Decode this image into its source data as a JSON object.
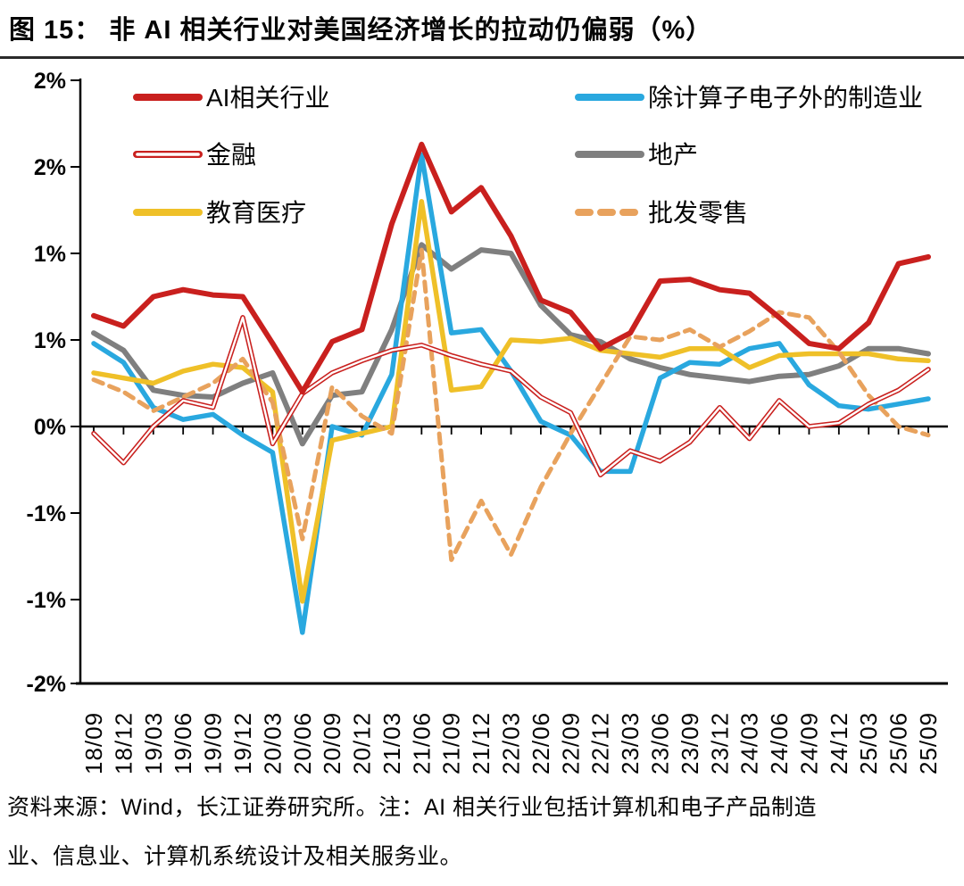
{
  "title": "图 15： 非 AI 相关行业对美国经济增长的拉动仍偏弱（%）",
  "footer": {
    "line1": "资料来源：Wind，长江证券研究所。注：AI 相关行业包括计算机和电子产品制造",
    "line2": "业、信息业、计算机系统设计及相关服务业。"
  },
  "colors": {
    "red": "#C9201E",
    "blue": "#29A8DF",
    "yellow": "#EFC028",
    "gray": "#7F7F7F",
    "orange": "#E8A25D",
    "axis": "#000000",
    "text": "#050505"
  },
  "chart_data": {
    "type": "line",
    "title": "非 AI 相关行业对美国经济增长的拉动仍偏弱（%）",
    "grid": false,
    "legend_position": "top-inside-two-columns",
    "x_labels": [
      "18/09",
      "18/12",
      "19/03",
      "19/06",
      "19/09",
      "19/12",
      "20/03",
      "20/06",
      "20/09",
      "20/12",
      "21/03",
      "21/06",
      "21/09",
      "21/12",
      "22/03",
      "22/06",
      "22/09",
      "22/12",
      "23/03",
      "23/06",
      "23/09",
      "23/12",
      "24/03",
      "24/06",
      "24/09",
      "24/12",
      "25/03",
      "25/06",
      "25/09"
    ],
    "y_axis": {
      "tick_labels": [
        "2%",
        "2%",
        "1%",
        "1%",
        "0%",
        "-1%",
        "-1%",
        "-2%"
      ],
      "tick_values": [
        2.0,
        1.5,
        1.0,
        0.5,
        0.0,
        -0.5,
        -1.0,
        -1.5
      ],
      "min": -1.5,
      "max": 2.0,
      "unit": "%"
    },
    "series": [
      {
        "name": "AI相关行业",
        "color": "red",
        "style": "solid",
        "z": 6,
        "values": [
          0.64,
          0.58,
          0.75,
          0.79,
          0.76,
          0.75,
          0.48,
          0.2,
          0.49,
          0.56,
          1.17,
          1.63,
          1.24,
          1.38,
          1.1,
          0.73,
          0.66,
          0.45,
          0.54,
          0.84,
          0.85,
          0.79,
          0.77,
          0.63,
          0.48,
          0.45,
          0.6,
          0.94,
          0.98
        ]
      },
      {
        "name": "除计算子电子外的制造业",
        "color": "blue",
        "style": "solid",
        "z": 2,
        "values": [
          0.48,
          0.37,
          0.11,
          0.04,
          0.07,
          -0.05,
          -0.15,
          -1.19,
          0.0,
          -0.05,
          0.3,
          1.57,
          0.54,
          0.56,
          0.32,
          0.03,
          -0.05,
          -0.26,
          -0.26,
          0.28,
          0.37,
          0.36,
          0.45,
          0.48,
          0.24,
          0.12,
          0.1,
          0.13,
          0.16
        ]
      },
      {
        "name": "金融",
        "color": "red",
        "style": "hollow",
        "z": 5,
        "values": [
          -0.04,
          -0.21,
          0.0,
          0.15,
          0.11,
          0.63,
          -0.1,
          0.19,
          0.31,
          0.38,
          0.44,
          0.47,
          0.41,
          0.36,
          0.32,
          0.17,
          0.08,
          -0.28,
          -0.14,
          -0.2,
          -0.09,
          0.11,
          -0.07,
          0.15,
          0.0,
          0.02,
          0.13,
          0.21,
          0.33
        ]
      },
      {
        "name": "地产",
        "color": "gray",
        "style": "solid",
        "z": 1,
        "values": [
          0.54,
          0.44,
          0.21,
          0.18,
          0.17,
          0.25,
          0.31,
          -0.1,
          0.18,
          0.2,
          0.56,
          1.05,
          0.91,
          1.02,
          1.0,
          0.7,
          0.53,
          0.49,
          0.39,
          0.34,
          0.3,
          0.28,
          0.26,
          0.29,
          0.3,
          0.35,
          0.45,
          0.45,
          0.42
        ]
      },
      {
        "name": "教育医疗",
        "color": "yellow",
        "style": "solid",
        "z": 3,
        "values": [
          0.31,
          0.28,
          0.25,
          0.32,
          0.36,
          0.34,
          0.2,
          -1.01,
          -0.08,
          -0.04,
          0.0,
          1.3,
          0.21,
          0.23,
          0.5,
          0.49,
          0.51,
          0.44,
          0.42,
          0.4,
          0.45,
          0.45,
          0.34,
          0.41,
          0.42,
          0.42,
          0.42,
          0.39,
          0.38
        ]
      },
      {
        "name": "批发零售",
        "color": "orange",
        "style": "dashed",
        "z": 4,
        "values": [
          0.27,
          0.2,
          0.09,
          0.17,
          0.25,
          0.39,
          0.14,
          -0.65,
          0.23,
          0.06,
          -0.04,
          1.02,
          -0.77,
          -0.43,
          -0.74,
          -0.35,
          -0.04,
          0.24,
          0.52,
          0.5,
          0.56,
          0.46,
          0.55,
          0.66,
          0.63,
          0.43,
          0.18,
          0.0,
          -0.05
        ]
      }
    ],
    "legend": {
      "rows": [
        [
          "AI相关行业",
          "除计算子电子外的制造业"
        ],
        [
          "金融",
          "地产"
        ],
        [
          "教育医疗",
          "批发零售"
        ]
      ]
    }
  }
}
